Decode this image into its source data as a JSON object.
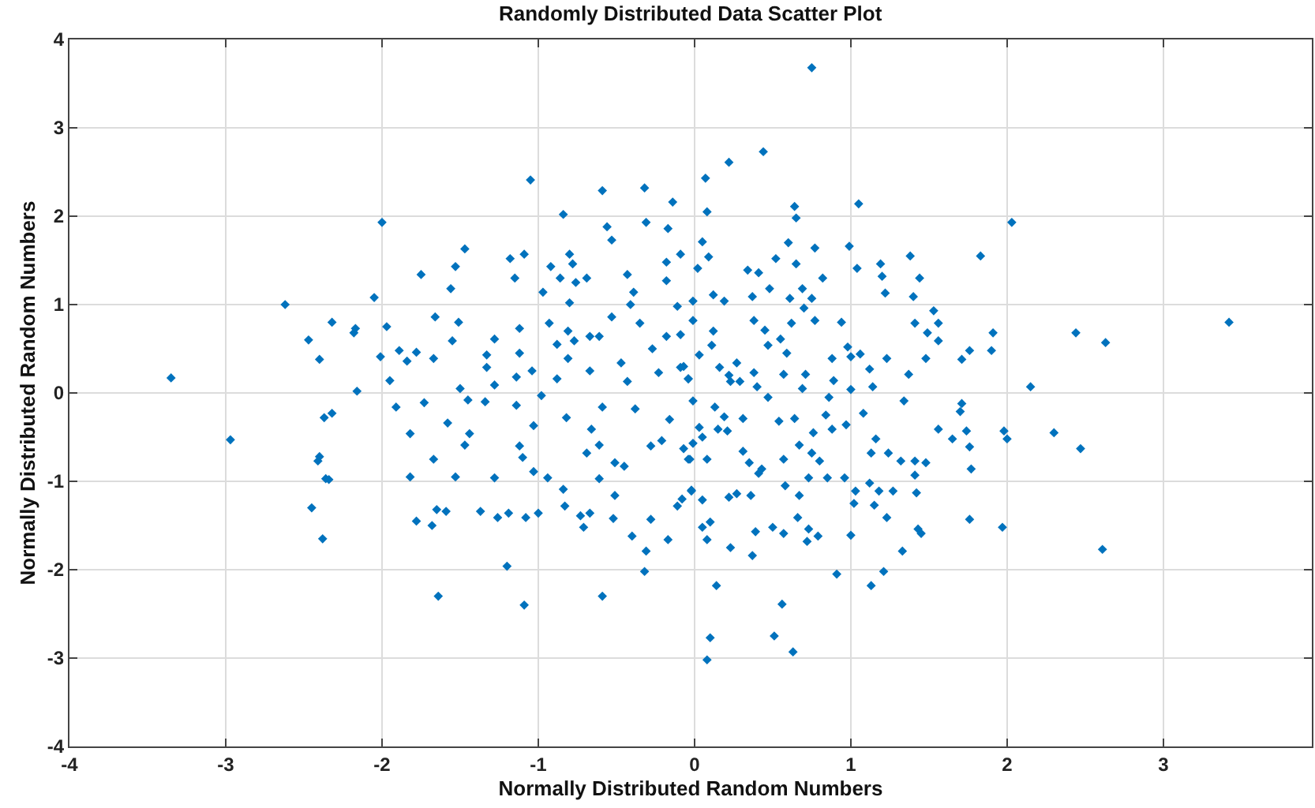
{
  "chart_data": {
    "type": "scatter",
    "title": "Randomly Distributed Data Scatter Plot",
    "xlabel": "Normally Distributed Random Numbers",
    "ylabel": "Normally Distributed Random Numbers",
    "xlim": [
      -4,
      3.95
    ],
    "ylim": [
      -4,
      4
    ],
    "xticks": [
      -4,
      -3,
      -2,
      -1,
      0,
      1,
      2,
      3
    ],
    "yticks": [
      -4,
      -3,
      -2,
      -1,
      0,
      1,
      2,
      3,
      4
    ],
    "grid": true,
    "marker": "diamond",
    "series": [
      {
        "color": "#0072bd",
        "x": [
          -3.35,
          -2.97,
          -2.62,
          -2.47,
          -2.45,
          -2.38,
          -2.4,
          -2.36,
          -2.41,
          -2.34,
          -2.37,
          -2.32,
          -2.0,
          -2.05,
          -2.18,
          -2.16,
          -1.64,
          -1.2,
          -1.09,
          -0.59,
          -0.32,
          -0.31,
          -1.82,
          -1.82,
          -1.78,
          -1.68,
          -1.65,
          -1.59,
          -1.67,
          -1.53,
          -1.47,
          -1.44,
          -1.37,
          -1.26,
          -1.28,
          -1.19,
          -1.12,
          -1.1,
          -1.08,
          -1.0,
          -1.03,
          -0.94,
          -0.84,
          -0.83,
          -0.73,
          -0.71,
          -0.67,
          -0.61,
          -0.51,
          -0.52,
          -0.4,
          -0.28,
          -0.17,
          -0.11,
          -0.02,
          -1.91,
          -1.73,
          -1.58,
          -1.45,
          -1.34,
          -1.14,
          -0.98,
          -1.03,
          -0.82,
          -0.66,
          -0.59,
          -0.51,
          -0.45,
          -0.38,
          -0.28,
          -0.21,
          -0.16,
          -0.04,
          -0.69,
          -0.61,
          -2.4,
          -2.32,
          -2.17,
          -1.97,
          -2.01,
          -1.95,
          -1.89,
          -1.84,
          -1.78,
          -1.75,
          -1.66,
          -1.67,
          -1.56,
          -1.53,
          -1.47,
          -1.51,
          -1.55,
          -1.5,
          -1.33,
          -1.28,
          -1.33,
          -1.28,
          -1.18,
          -1.15,
          -1.12,
          -1.09,
          -1.05,
          -1.12,
          -1.04,
          -1.14,
          -0.97,
          -0.92,
          -0.84,
          -0.86,
          -0.8,
          -0.78,
          -0.76,
          -0.69,
          -0.93,
          -0.88,
          -0.81,
          -0.8,
          -0.77,
          -0.81,
          -0.88,
          -0.67,
          -0.59,
          -0.56,
          -0.53,
          -0.43,
          -0.41,
          -0.39,
          -0.32,
          -0.31,
          -0.17,
          -0.14,
          -0.18,
          -0.18,
          -0.11,
          -0.09,
          -0.53,
          -0.61,
          -0.47,
          -0.35,
          -0.27,
          -0.18,
          -0.09,
          -0.43,
          -0.23,
          -0.04,
          -0.67,
          0.75,
          0.44,
          0.22,
          0.07,
          0.08,
          0.64,
          0.65,
          1.05,
          2.03,
          0.6,
          0.77,
          0.99,
          0.52,
          0.65,
          1.04,
          0.34,
          0.41,
          0.05,
          0.09,
          0.02,
          0.82,
          1.19,
          1.2,
          1.22,
          1.38,
          1.44,
          1.4,
          1.83,
          1.53,
          1.56,
          1.41,
          1.91,
          1.9,
          1.76,
          1.71,
          1.49,
          1.56,
          1.48,
          1.37,
          2.44,
          2.63,
          3.42,
          2.15,
          0.94,
          0.98,
          1.06,
          1.23,
          1.12,
          0.88,
          0.89,
          0.75,
          0.69,
          0.61,
          0.48,
          0.37,
          0.19,
          0.12,
          -0.01,
          0.38,
          0.62,
          0.7,
          0.77,
          0.45,
          0.47,
          0.55,
          0.59,
          0.12,
          -0.01,
          -0.09,
          0.11,
          0.03,
          0.16,
          0.27,
          0.38,
          0.57,
          0.71,
          -0.07,
          -0.04,
          0.22,
          0.29,
          1.0,
          2.47,
          2.61,
          2.3,
          1.98,
          2.0,
          1.97,
          1.76,
          1.77,
          1.76,
          1.74,
          1.71,
          1.7,
          1.65,
          1.56,
          1.48,
          1.41,
          1.41,
          1.42,
          1.43,
          1.45,
          1.33,
          1.34,
          1.32,
          1.24,
          1.27,
          1.23,
          1.18,
          1.15,
          1.21,
          1.13,
          1.12,
          1.13,
          1.16,
          1.08,
          1.14,
          1.0,
          1.03,
          1.02,
          1.0,
          0.91,
          0.97,
          0.96,
          0.88,
          0.8,
          0.85,
          0.79,
          0.72,
          0.73,
          0.66,
          0.67,
          0.63,
          0.51,
          0.56,
          0.57,
          0.5,
          0.37,
          0.39,
          0.23,
          0.14,
          0.1,
          0.08,
          0.08,
          0.05,
          0.1,
          0.05,
          -0.08,
          -0.02,
          0.22,
          0.27,
          0.36,
          0.58,
          0.41,
          0.43,
          0.31,
          0.35,
          0.57,
          0.75,
          0.73,
          0.67,
          0.76,
          0.54,
          0.64,
          0.31,
          0.19,
          0.21,
          0.15,
          0.05,
          -0.01,
          -0.07,
          0.08,
          -0.03,
          0.13,
          0.03,
          -0.01,
          0.47,
          0.69,
          0.84,
          0.86,
          0.4,
          0.23
        ],
        "values": [
          0.17,
          -0.53,
          1.0,
          0.6,
          -1.3,
          -1.65,
          -0.72,
          -0.97,
          -0.77,
          -0.98,
          -0.28,
          -0.23,
          1.93,
          1.08,
          0.68,
          0.02,
          -2.3,
          -1.96,
          -2.4,
          -2.3,
          -2.02,
          -1.79,
          -0.46,
          -0.95,
          -1.45,
          -1.5,
          -1.32,
          -1.34,
          -0.75,
          -0.95,
          -0.59,
          -0.46,
          -1.34,
          -1.41,
          -0.96,
          -1.36,
          -0.6,
          -0.73,
          -1.41,
          -1.36,
          -0.89,
          -0.96,
          -1.09,
          -1.28,
          -1.39,
          -1.52,
          -1.36,
          -0.97,
          -1.16,
          -1.42,
          -1.62,
          -1.43,
          -1.66,
          -1.28,
          -1.1,
          -0.16,
          -0.11,
          -0.34,
          -0.08,
          -0.1,
          -0.14,
          -0.03,
          -0.37,
          -0.28,
          -0.41,
          -0.16,
          -0.79,
          -0.83,
          -0.18,
          -0.6,
          -0.54,
          -0.3,
          -0.75,
          -0.68,
          -0.59,
          0.38,
          0.8,
          0.73,
          0.75,
          0.41,
          0.14,
          0.48,
          0.36,
          0.46,
          1.34,
          0.86,
          0.39,
          1.18,
          1.43,
          1.63,
          0.8,
          0.59,
          0.05,
          0.43,
          0.61,
          0.29,
          0.09,
          1.52,
          1.3,
          0.73,
          1.57,
          2.41,
          0.45,
          0.25,
          0.18,
          1.14,
          1.43,
          2.02,
          1.3,
          1.57,
          1.46,
          1.25,
          1.3,
          0.79,
          0.55,
          0.7,
          1.02,
          0.59,
          0.39,
          0.16,
          0.25,
          2.29,
          1.88,
          1.73,
          1.34,
          1.0,
          1.14,
          2.32,
          1.93,
          1.86,
          2.16,
          1.48,
          1.27,
          0.98,
          1.57,
          0.86,
          0.64,
          0.34,
          0.79,
          0.5,
          0.64,
          0.29,
          0.13,
          0.23,
          0.16,
          0.64,
          3.68,
          2.73,
          2.61,
          2.43,
          2.05,
          2.11,
          1.98,
          2.14,
          1.93,
          1.7,
          1.64,
          1.66,
          1.52,
          1.46,
          1.41,
          1.39,
          1.36,
          1.71,
          1.54,
          1.41,
          1.3,
          1.46,
          1.32,
          1.13,
          1.55,
          1.3,
          1.09,
          1.55,
          0.93,
          0.79,
          0.79,
          0.68,
          0.48,
          0.48,
          0.38,
          0.68,
          0.59,
          0.39,
          0.21,
          0.68,
          0.57,
          0.8,
          0.07,
          0.8,
          0.52,
          0.44,
          0.39,
          0.27,
          0.39,
          0.14,
          1.07,
          1.18,
          1.07,
          1.18,
          1.09,
          1.04,
          1.11,
          1.04,
          0.82,
          0.79,
          0.96,
          0.82,
          0.71,
          0.54,
          0.61,
          0.45,
          0.7,
          0.82,
          0.66,
          0.54,
          0.43,
          0.29,
          0.34,
          0.23,
          0.21,
          0.21,
          0.3,
          0.16,
          0.2,
          0.13,
          0.41,
          -0.63,
          -1.77,
          -0.45,
          -0.43,
          -0.52,
          -1.52,
          -1.43,
          -0.86,
          -0.61,
          -0.43,
          -0.12,
          -0.21,
          -0.52,
          -0.41,
          -0.79,
          -0.77,
          -0.93,
          -1.13,
          -1.54,
          -1.59,
          -1.79,
          -0.09,
          -0.77,
          -0.68,
          -1.11,
          -1.41,
          -1.11,
          -1.27,
          -2.02,
          -2.18,
          -1.02,
          -0.68,
          -0.52,
          -0.23,
          0.07,
          0.04,
          -1.11,
          -1.25,
          -1.61,
          -2.05,
          -0.36,
          -0.96,
          -0.41,
          -0.77,
          -0.96,
          -1.62,
          -1.68,
          -1.54,
          -1.41,
          -1.16,
          -2.93,
          -2.75,
          -2.39,
          -1.59,
          -1.52,
          -1.84,
          -1.57,
          -1.75,
          -2.18,
          -2.77,
          -3.02,
          -1.66,
          -1.52,
          -1.46,
          -1.21,
          -1.2,
          -1.11,
          -1.18,
          -1.14,
          -1.16,
          -1.05,
          -0.91,
          -0.86,
          -0.66,
          -0.79,
          -0.75,
          -0.68,
          -0.96,
          -0.59,
          -0.45,
          -0.32,
          -0.29,
          -0.29,
          -0.27,
          -0.43,
          -0.41,
          -0.5,
          -0.57,
          -0.63,
          -0.75,
          -0.75,
          -0.16,
          -0.39,
          -0.09,
          -0.05,
          0.05,
          -0.25,
          -0.05,
          0.07,
          0.13
        ]
      }
    ]
  }
}
